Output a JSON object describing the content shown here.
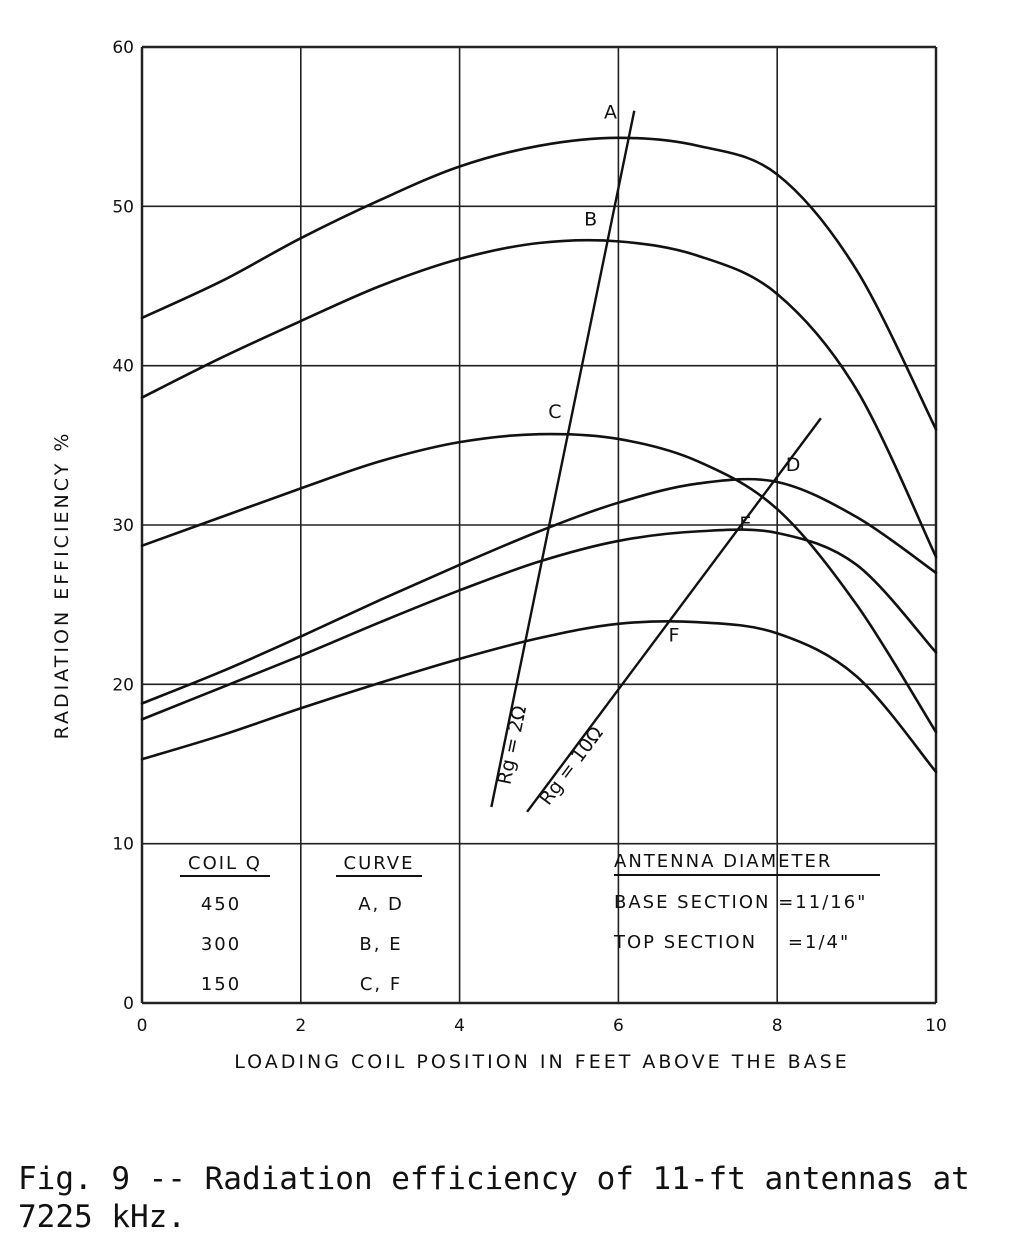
{
  "caption": "Fig. 9 -- Radiation efficiency of 11-ft antennas at 7225 kHz.",
  "chart_data": {
    "type": "line",
    "xlabel": "LOADING COIL POSITION IN FEET ABOVE THE BASE",
    "ylabel": "RADIATION EFFICIENCY %",
    "xlim": [
      0,
      10
    ],
    "ylim": [
      0,
      60
    ],
    "x_ticks": [
      0,
      2,
      4,
      6,
      8,
      10
    ],
    "y_ticks": [
      0,
      10,
      20,
      30,
      40,
      50,
      60
    ],
    "grid": true,
    "series": [
      {
        "name": "A",
        "x": [
          0,
          1,
          2,
          3,
          4,
          5,
          6,
          7,
          8,
          9,
          10
        ],
        "y": [
          43,
          45.3,
          48,
          50.4,
          52.5,
          53.8,
          54.3,
          53.8,
          52,
          46,
          36
        ]
      },
      {
        "name": "B",
        "x": [
          0,
          1,
          2,
          3,
          4,
          5,
          6,
          7,
          8,
          9,
          10
        ],
        "y": [
          38,
          40.5,
          42.8,
          45,
          46.7,
          47.7,
          47.8,
          46.9,
          44.5,
          38.5,
          28
        ]
      },
      {
        "name": "C",
        "x": [
          0,
          1,
          2,
          3,
          4,
          5,
          6,
          7,
          8,
          9,
          10
        ],
        "y": [
          28.7,
          30.5,
          32.3,
          34,
          35.2,
          35.7,
          35.4,
          34,
          31,
          25,
          17
        ]
      },
      {
        "name": "D",
        "x": [
          0,
          1,
          2,
          3,
          4,
          5,
          6,
          7,
          8,
          9,
          10
        ],
        "y": [
          18.8,
          20.8,
          23,
          25.3,
          27.5,
          29.6,
          31.4,
          32.6,
          32.7,
          30.5,
          27
        ]
      },
      {
        "name": "E",
        "x": [
          0,
          1,
          2,
          3,
          4,
          5,
          6,
          7,
          8,
          9,
          10
        ],
        "y": [
          17.8,
          19.8,
          21.8,
          23.9,
          25.9,
          27.7,
          29,
          29.6,
          29.5,
          27.5,
          22
        ]
      },
      {
        "name": "F",
        "x": [
          0,
          1,
          2,
          3,
          4,
          5,
          6,
          7,
          8,
          9,
          10
        ],
        "y": [
          15.3,
          16.8,
          18.5,
          20.1,
          21.6,
          22.9,
          23.8,
          23.9,
          23.2,
          20.5,
          14.5
        ]
      }
    ],
    "reference_lines": [
      {
        "name": "Rg = 2Ω",
        "x": [
          4.4,
          6.2
        ],
        "y": [
          12.3,
          56
        ]
      },
      {
        "name": "Rg = 10Ω",
        "x": [
          4.85,
          8.55
        ],
        "y": [
          12,
          36.7
        ]
      }
    ],
    "point_labels": [
      {
        "text": "A",
        "x": 5.9,
        "y": 55.5
      },
      {
        "text": "B",
        "x": 5.65,
        "y": 48.8
      },
      {
        "text": "C",
        "x": 5.2,
        "y": 36.7
      },
      {
        "text": "D",
        "x": 8.2,
        "y": 33.4
      },
      {
        "text": "E",
        "x": 7.6,
        "y": 29.7
      },
      {
        "text": "F",
        "x": 6.7,
        "y": 22.7
      }
    ],
    "legend": {
      "placement": "bottom",
      "coil_q_header": "COIL Q",
      "curve_header": "CURVE",
      "rows": [
        {
          "coil_q": "450",
          "curve": "A, D"
        },
        {
          "coil_q": "300",
          "curve": "B, E"
        },
        {
          "coil_q": "150",
          "curve": "C, F"
        }
      ],
      "diameter_header": "ANTENNA DIAMETER",
      "diameter_rows": [
        "BASE SECTION =11/16\"",
        "TOP SECTION    =1/4\""
      ]
    }
  }
}
